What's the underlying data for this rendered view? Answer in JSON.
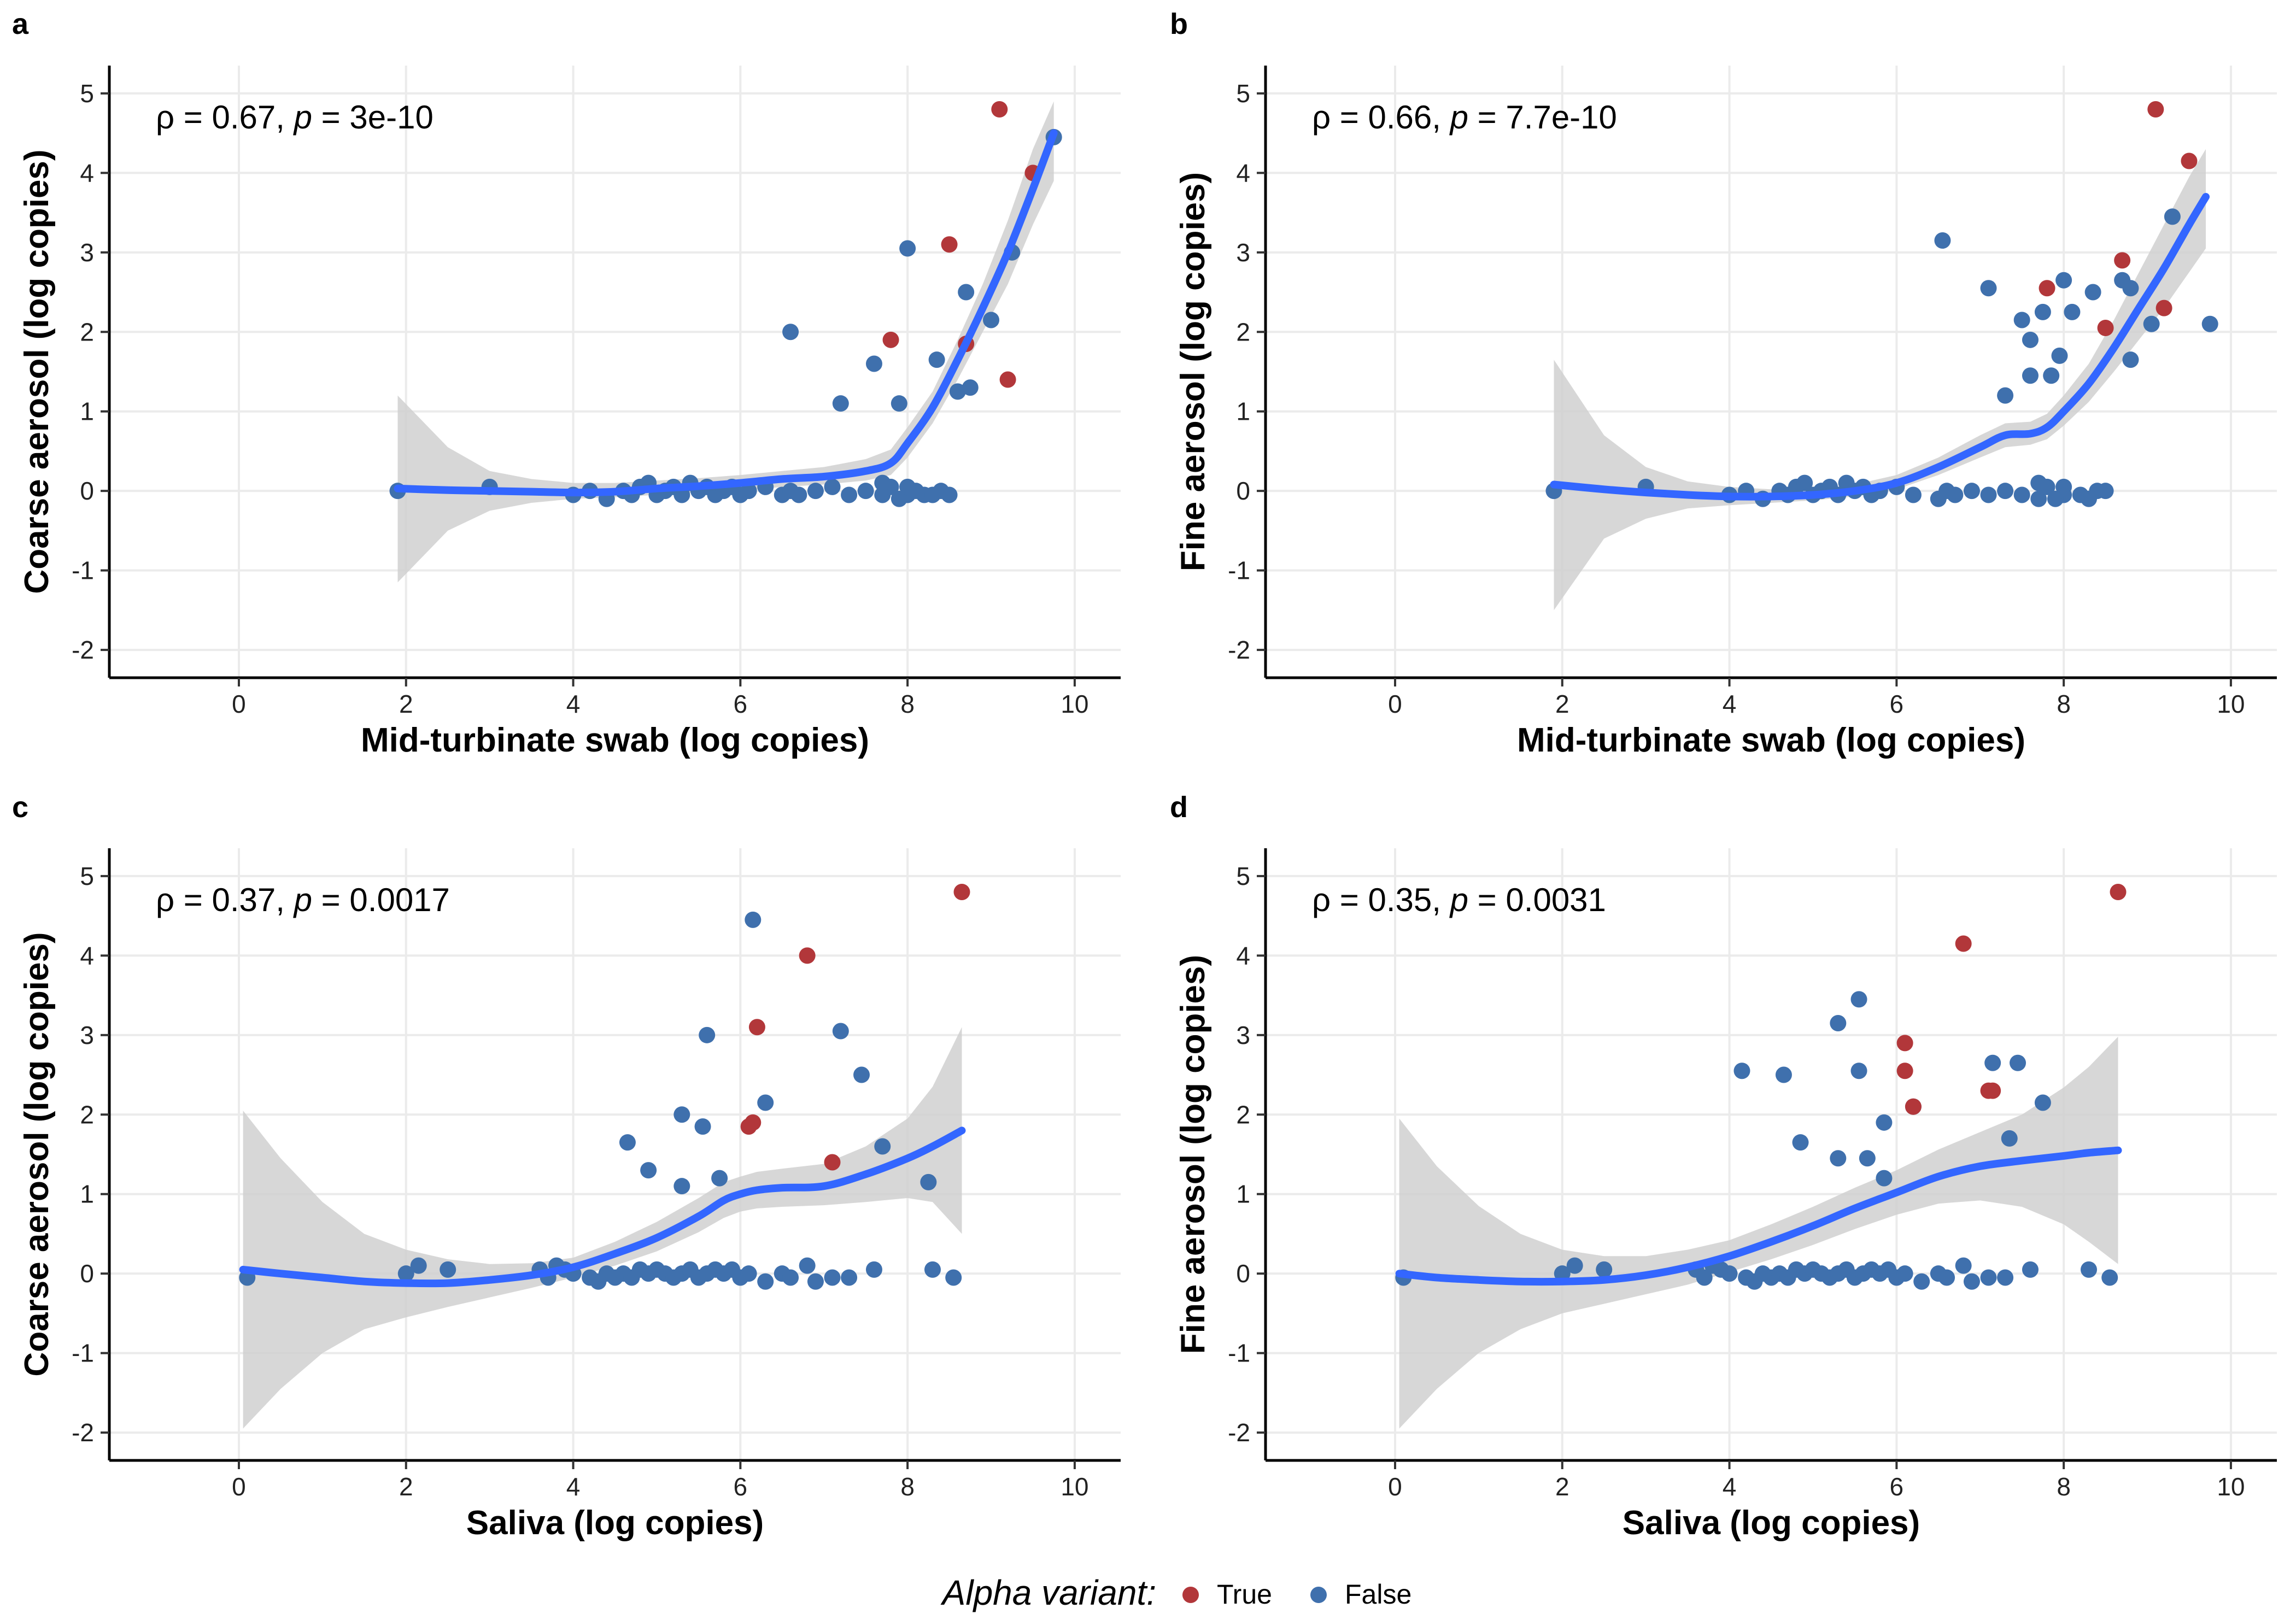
{
  "legend": {
    "title": "Alpha variant:",
    "items": [
      {
        "label": "True",
        "color": "#b2373a"
      },
      {
        "label": "False",
        "color": "#3f70ad"
      }
    ]
  },
  "colors": {
    "fit_line": "#3366ff",
    "ribbon": "#d0d0d0"
  },
  "chart_data": [
    {
      "type": "scatter",
      "panel": "a",
      "xlabel": "Mid-turbinate swab (log copies)",
      "ylabel": "Coarse aerosol (log copies)",
      "annotation": {
        "rho": "0.67",
        "p": "3e-10"
      },
      "xlim": [
        -1.55,
        10.55
      ],
      "ylim": [
        -2.35,
        5.35
      ],
      "xticks": [
        0,
        2,
        4,
        6,
        8,
        10
      ],
      "yticks": [
        -2,
        -1,
        0,
        1,
        2,
        3,
        4,
        5
      ],
      "grid": true,
      "points_true": [
        [
          9.1,
          4.8
        ],
        [
          9.5,
          4.0
        ],
        [
          8.5,
          3.1
        ],
        [
          7.8,
          1.9
        ],
        [
          8.7,
          1.85
        ],
        [
          9.2,
          1.4
        ]
      ],
      "points_false": [
        [
          1.9,
          0.0
        ],
        [
          3.0,
          0.05
        ],
        [
          4.0,
          -0.05
        ],
        [
          4.2,
          0.0
        ],
        [
          4.4,
          -0.1
        ],
        [
          4.6,
          0.0
        ],
        [
          4.7,
          -0.05
        ],
        [
          4.8,
          0.05
        ],
        [
          4.9,
          0.1
        ],
        [
          5.0,
          -0.05
        ],
        [
          5.1,
          0.0
        ],
        [
          5.2,
          0.05
        ],
        [
          5.3,
          -0.05
        ],
        [
          5.4,
          0.1
        ],
        [
          5.5,
          0.0
        ],
        [
          5.6,
          0.05
        ],
        [
          5.7,
          -0.05
        ],
        [
          5.8,
          0.0
        ],
        [
          5.9,
          0.05
        ],
        [
          6.0,
          -0.05
        ],
        [
          6.1,
          0.0
        ],
        [
          6.3,
          0.05
        ],
        [
          6.5,
          -0.05
        ],
        [
          6.6,
          0.0
        ],
        [
          6.7,
          -0.05
        ],
        [
          6.9,
          0.0
        ],
        [
          7.1,
          0.05
        ],
        [
          7.3,
          -0.05
        ],
        [
          7.5,
          0.0
        ],
        [
          7.7,
          -0.05
        ],
        [
          7.8,
          0.05
        ],
        [
          8.0,
          -0.05
        ],
        [
          8.1,
          0.0
        ],
        [
          8.2,
          -0.05
        ],
        [
          8.3,
          -0.05
        ],
        [
          8.4,
          0.0
        ],
        [
          8.5,
          -0.05
        ],
        [
          7.7,
          0.1
        ],
        [
          7.9,
          -0.1
        ],
        [
          8.0,
          0.05
        ],
        [
          6.6,
          2.0
        ],
        [
          7.2,
          1.1
        ],
        [
          7.6,
          1.6
        ],
        [
          7.9,
          1.1
        ],
        [
          8.0,
          3.05
        ],
        [
          8.35,
          1.65
        ],
        [
          8.6,
          1.25
        ],
        [
          8.7,
          2.5
        ],
        [
          8.75,
          1.3
        ],
        [
          9.0,
          2.15
        ],
        [
          9.25,
          3.0
        ],
        [
          9.75,
          4.45
        ]
      ],
      "fit_x": [
        1.9,
        2.5,
        3.0,
        3.5,
        4.0,
        4.5,
        5.0,
        5.5,
        6.0,
        6.5,
        7.0,
        7.5,
        7.8,
        8.0,
        8.3,
        8.6,
        8.9,
        9.2,
        9.5,
        9.75
      ],
      "fit_y": [
        0.03,
        0.01,
        0.0,
        -0.01,
        -0.02,
        -0.01,
        0.03,
        0.06,
        0.1,
        0.15,
        0.18,
        0.25,
        0.35,
        0.6,
        1.05,
        1.65,
        2.3,
        3.0,
        3.8,
        4.5
      ],
      "ribbon_lo": [
        -1.15,
        -0.5,
        -0.25,
        -0.15,
        -0.1,
        -0.08,
        -0.05,
        -0.02,
        0.0,
        0.05,
        0.08,
        0.13,
        0.2,
        0.42,
        0.85,
        1.4,
        2.0,
        2.6,
        3.35,
        3.9
      ],
      "ribbon_hi": [
        1.2,
        0.55,
        0.25,
        0.15,
        0.1,
        0.1,
        0.13,
        0.16,
        0.2,
        0.25,
        0.3,
        0.4,
        0.52,
        0.8,
        1.25,
        1.9,
        2.6,
        3.4,
        4.3,
        4.9
      ]
    },
    {
      "type": "scatter",
      "panel": "b",
      "xlabel": "Mid-turbinate swab (log copies)",
      "ylabel": "Fine aerosol (log copies)",
      "annotation": {
        "rho": "0.66",
        "p": "7.7e-10"
      },
      "xlim": [
        -1.55,
        10.55
      ],
      "ylim": [
        -2.35,
        5.35
      ],
      "xticks": [
        0,
        2,
        4,
        6,
        8,
        10
      ],
      "yticks": [
        -2,
        -1,
        0,
        1,
        2,
        3,
        4,
        5
      ],
      "grid": true,
      "points_true": [
        [
          9.1,
          4.8
        ],
        [
          9.5,
          4.15
        ],
        [
          8.7,
          2.9
        ],
        [
          7.8,
          2.55
        ],
        [
          8.5,
          2.05
        ],
        [
          9.2,
          2.3
        ]
      ],
      "points_false": [
        [
          1.9,
          0.0
        ],
        [
          3.0,
          0.05
        ],
        [
          4.0,
          -0.05
        ],
        [
          4.2,
          0.0
        ],
        [
          4.4,
          -0.1
        ],
        [
          4.6,
          0.0
        ],
        [
          4.7,
          -0.05
        ],
        [
          4.8,
          0.05
        ],
        [
          4.9,
          0.1
        ],
        [
          5.0,
          -0.05
        ],
        [
          5.1,
          0.0
        ],
        [
          5.2,
          0.05
        ],
        [
          5.3,
          -0.05
        ],
        [
          5.4,
          0.1
        ],
        [
          5.5,
          0.0
        ],
        [
          5.6,
          0.05
        ],
        [
          5.7,
          -0.05
        ],
        [
          5.8,
          0.0
        ],
        [
          6.0,
          0.05
        ],
        [
          6.2,
          -0.05
        ],
        [
          6.5,
          -0.1
        ],
        [
          6.6,
          0.0
        ],
        [
          6.7,
          -0.05
        ],
        [
          6.9,
          0.0
        ],
        [
          7.1,
          -0.05
        ],
        [
          7.3,
          0.0
        ],
        [
          7.5,
          -0.05
        ],
        [
          7.7,
          -0.1
        ],
        [
          7.8,
          0.05
        ],
        [
          8.0,
          -0.05
        ],
        [
          8.2,
          -0.05
        ],
        [
          8.3,
          -0.1
        ],
        [
          8.4,
          0.0
        ],
        [
          8.5,
          0.0
        ],
        [
          7.7,
          0.1
        ],
        [
          7.9,
          -0.1
        ],
        [
          8.0,
          0.05
        ],
        [
          6.55,
          3.15
        ],
        [
          7.1,
          2.55
        ],
        [
          7.3,
          1.2
        ],
        [
          7.5,
          2.15
        ],
        [
          7.6,
          1.9
        ],
        [
          7.6,
          1.45
        ],
        [
          7.75,
          2.25
        ],
        [
          7.85,
          1.45
        ],
        [
          7.95,
          1.7
        ],
        [
          8.0,
          2.65
        ],
        [
          8.1,
          2.25
        ],
        [
          8.35,
          2.5
        ],
        [
          8.7,
          2.65
        ],
        [
          8.8,
          2.55
        ],
        [
          8.8,
          1.65
        ],
        [
          9.05,
          2.1
        ],
        [
          9.3,
          3.45
        ],
        [
          9.75,
          2.1
        ]
      ],
      "fit_x": [
        1.9,
        2.5,
        3.0,
        3.5,
        4.0,
        4.5,
        5.0,
        5.5,
        6.0,
        6.5,
        7.0,
        7.3,
        7.6,
        7.8,
        8.0,
        8.3,
        8.6,
        8.9,
        9.2,
        9.5,
        9.7
      ],
      "fit_y": [
        0.08,
        0.02,
        -0.02,
        -0.05,
        -0.07,
        -0.07,
        -0.05,
        0.0,
        0.1,
        0.3,
        0.55,
        0.7,
        0.72,
        0.8,
        1.0,
        1.35,
        1.8,
        2.3,
        2.8,
        3.35,
        3.7
      ],
      "ribbon_lo": [
        -1.5,
        -0.6,
        -0.35,
        -0.22,
        -0.18,
        -0.15,
        -0.12,
        -0.07,
        0.02,
        0.2,
        0.42,
        0.55,
        0.58,
        0.65,
        0.82,
        1.12,
        1.5,
        1.9,
        2.3,
        2.75,
        3.05
      ],
      "ribbon_hi": [
        1.65,
        0.7,
        0.3,
        0.12,
        0.05,
        0.02,
        0.02,
        0.08,
        0.2,
        0.42,
        0.7,
        0.85,
        0.87,
        0.97,
        1.2,
        1.6,
        2.15,
        2.75,
        3.35,
        3.95,
        4.3
      ]
    },
    {
      "type": "scatter",
      "panel": "c",
      "xlabel": "Saliva (log copies)",
      "ylabel": "Coarse aerosol (log copies)",
      "annotation": {
        "rho": "0.37",
        "p": "0.0017"
      },
      "xlim": [
        -1.55,
        10.55
      ],
      "ylim": [
        -2.35,
        5.35
      ],
      "xticks": [
        0,
        2,
        4,
        6,
        8,
        10
      ],
      "yticks": [
        -2,
        -1,
        0,
        1,
        2,
        3,
        4,
        5
      ],
      "grid": true,
      "points_true": [
        [
          8.65,
          4.8
        ],
        [
          6.8,
          4.0
        ],
        [
          6.2,
          3.1
        ],
        [
          6.1,
          1.85
        ],
        [
          6.15,
          1.9
        ],
        [
          7.1,
          1.4
        ]
      ],
      "points_false": [
        [
          0.1,
          -0.05
        ],
        [
          2.0,
          0.0
        ],
        [
          2.15,
          0.1
        ],
        [
          2.5,
          0.05
        ],
        [
          3.6,
          0.05
        ],
        [
          3.7,
          -0.05
        ],
        [
          3.8,
          0.1
        ],
        [
          3.9,
          0.05
        ],
        [
          4.0,
          0.0
        ],
        [
          4.2,
          -0.05
        ],
        [
          4.3,
          -0.1
        ],
        [
          4.4,
          0.0
        ],
        [
          4.5,
          -0.05
        ],
        [
          4.6,
          0.0
        ],
        [
          4.7,
          -0.05
        ],
        [
          4.8,
          0.05
        ],
        [
          4.9,
          0.0
        ],
        [
          5.0,
          0.05
        ],
        [
          5.1,
          0.0
        ],
        [
          5.2,
          -0.05
        ],
        [
          5.3,
          0.0
        ],
        [
          5.4,
          0.05
        ],
        [
          5.5,
          -0.05
        ],
        [
          5.6,
          0.0
        ],
        [
          5.7,
          0.05
        ],
        [
          5.8,
          0.0
        ],
        [
          5.9,
          0.05
        ],
        [
          6.0,
          -0.05
        ],
        [
          6.1,
          0.0
        ],
        [
          6.3,
          -0.1
        ],
        [
          6.5,
          0.0
        ],
        [
          6.6,
          -0.05
        ],
        [
          6.8,
          0.1
        ],
        [
          6.9,
          -0.1
        ],
        [
          7.1,
          -0.05
        ],
        [
          7.3,
          -0.05
        ],
        [
          7.6,
          0.05
        ],
        [
          8.3,
          0.05
        ],
        [
          8.55,
          -0.05
        ],
        [
          6.15,
          4.45
        ],
        [
          5.6,
          3.0
        ],
        [
          7.2,
          3.05
        ],
        [
          7.45,
          2.5
        ],
        [
          5.3,
          2.0
        ],
        [
          6.3,
          2.15
        ],
        [
          5.55,
          1.85
        ],
        [
          4.65,
          1.65
        ],
        [
          4.9,
          1.3
        ],
        [
          5.3,
          1.1
        ],
        [
          5.75,
          1.2
        ],
        [
          7.7,
          1.6
        ],
        [
          8.25,
          1.15
        ]
      ],
      "fit_x": [
        0.05,
        0.5,
        1.0,
        1.5,
        2.0,
        2.5,
        3.0,
        3.5,
        4.0,
        4.5,
        5.0,
        5.5,
        5.8,
        6.0,
        6.2,
        6.5,
        7.0,
        7.5,
        8.0,
        8.3,
        8.65
      ],
      "fit_y": [
        0.05,
        0.0,
        -0.05,
        -0.1,
        -0.12,
        -0.12,
        -0.08,
        -0.02,
        0.08,
        0.25,
        0.45,
        0.72,
        0.92,
        1.0,
        1.05,
        1.08,
        1.1,
        1.25,
        1.45,
        1.6,
        1.8
      ],
      "ribbon_lo": [
        -1.95,
        -1.45,
        -1.0,
        -0.7,
        -0.55,
        -0.42,
        -0.3,
        -0.18,
        -0.05,
        0.1,
        0.28,
        0.52,
        0.7,
        0.78,
        0.82,
        0.84,
        0.86,
        0.9,
        0.95,
        0.9,
        0.5
      ],
      "ribbon_hi": [
        2.05,
        1.45,
        0.9,
        0.5,
        0.3,
        0.18,
        0.12,
        0.13,
        0.2,
        0.4,
        0.65,
        0.95,
        1.15,
        1.22,
        1.28,
        1.32,
        1.38,
        1.6,
        1.95,
        2.35,
        3.1
      ]
    },
    {
      "type": "scatter",
      "panel": "d",
      "xlabel": "Saliva (log copies)",
      "ylabel": "Fine aerosol (log copies)",
      "annotation": {
        "rho": "0.35",
        "p": "0.0031"
      },
      "xlim": [
        -1.55,
        10.55
      ],
      "ylim": [
        -2.35,
        5.35
      ],
      "xticks": [
        0,
        2,
        4,
        6,
        8,
        10
      ],
      "yticks": [
        -2,
        -1,
        0,
        1,
        2,
        3,
        4,
        5
      ],
      "grid": true,
      "points_true": [
        [
          8.65,
          4.8
        ],
        [
          6.8,
          4.15
        ],
        [
          6.1,
          2.9
        ],
        [
          6.1,
          2.55
        ],
        [
          7.1,
          2.3
        ],
        [
          7.15,
          2.3
        ],
        [
          6.2,
          2.1
        ]
      ],
      "points_false": [
        [
          0.1,
          -0.05
        ],
        [
          2.0,
          0.0
        ],
        [
          2.15,
          0.1
        ],
        [
          2.5,
          0.05
        ],
        [
          3.6,
          0.05
        ],
        [
          3.7,
          -0.05
        ],
        [
          3.8,
          0.1
        ],
        [
          3.9,
          0.05
        ],
        [
          4.0,
          0.0
        ],
        [
          4.2,
          -0.05
        ],
        [
          4.3,
          -0.1
        ],
        [
          4.4,
          0.0
        ],
        [
          4.5,
          -0.05
        ],
        [
          4.6,
          0.0
        ],
        [
          4.7,
          -0.05
        ],
        [
          4.8,
          0.05
        ],
        [
          4.9,
          0.0
        ],
        [
          5.0,
          0.05
        ],
        [
          5.1,
          0.0
        ],
        [
          5.2,
          -0.05
        ],
        [
          5.3,
          0.0
        ],
        [
          5.4,
          0.05
        ],
        [
          5.5,
          -0.05
        ],
        [
          5.6,
          0.0
        ],
        [
          5.7,
          0.05
        ],
        [
          5.8,
          0.0
        ],
        [
          5.9,
          0.05
        ],
        [
          6.0,
          -0.05
        ],
        [
          6.1,
          0.0
        ],
        [
          6.3,
          -0.1
        ],
        [
          6.5,
          0.0
        ],
        [
          6.6,
          -0.05
        ],
        [
          6.8,
          0.1
        ],
        [
          6.9,
          -0.1
        ],
        [
          7.1,
          -0.05
        ],
        [
          7.3,
          -0.05
        ],
        [
          7.6,
          0.05
        ],
        [
          8.3,
          0.05
        ],
        [
          8.55,
          -0.05
        ],
        [
          4.15,
          2.55
        ],
        [
          4.65,
          2.5
        ],
        [
          5.3,
          3.15
        ],
        [
          5.55,
          3.45
        ],
        [
          5.55,
          2.55
        ],
        [
          6.2,
          2.1
        ],
        [
          5.85,
          1.9
        ],
        [
          7.15,
          2.65
        ],
        [
          7.45,
          2.65
        ],
        [
          7.75,
          2.15
        ],
        [
          4.85,
          1.65
        ],
        [
          5.3,
          1.45
        ],
        [
          5.65,
          1.45
        ],
        [
          5.85,
          1.2
        ],
        [
          7.35,
          1.7
        ]
      ],
      "fit_x": [
        0.05,
        0.5,
        1.0,
        1.5,
        2.0,
        2.5,
        3.0,
        3.5,
        4.0,
        4.5,
        5.0,
        5.5,
        6.0,
        6.5,
        7.0,
        7.5,
        8.0,
        8.3,
        8.65
      ],
      "fit_y": [
        0.0,
        -0.05,
        -0.08,
        -0.1,
        -0.1,
        -0.08,
        -0.02,
        0.08,
        0.22,
        0.4,
        0.6,
        0.82,
        1.02,
        1.22,
        1.35,
        1.42,
        1.48,
        1.52,
        1.55
      ],
      "ribbon_lo": [
        -1.95,
        -1.45,
        -1.0,
        -0.7,
        -0.5,
        -0.38,
        -0.26,
        -0.14,
        0.02,
        0.18,
        0.36,
        0.56,
        0.74,
        0.88,
        0.92,
        0.84,
        0.62,
        0.4,
        0.12
      ],
      "ribbon_hi": [
        1.95,
        1.35,
        0.85,
        0.5,
        0.3,
        0.22,
        0.22,
        0.3,
        0.42,
        0.62,
        0.84,
        1.08,
        1.3,
        1.56,
        1.78,
        2.0,
        2.34,
        2.6,
        2.98
      ]
    }
  ]
}
